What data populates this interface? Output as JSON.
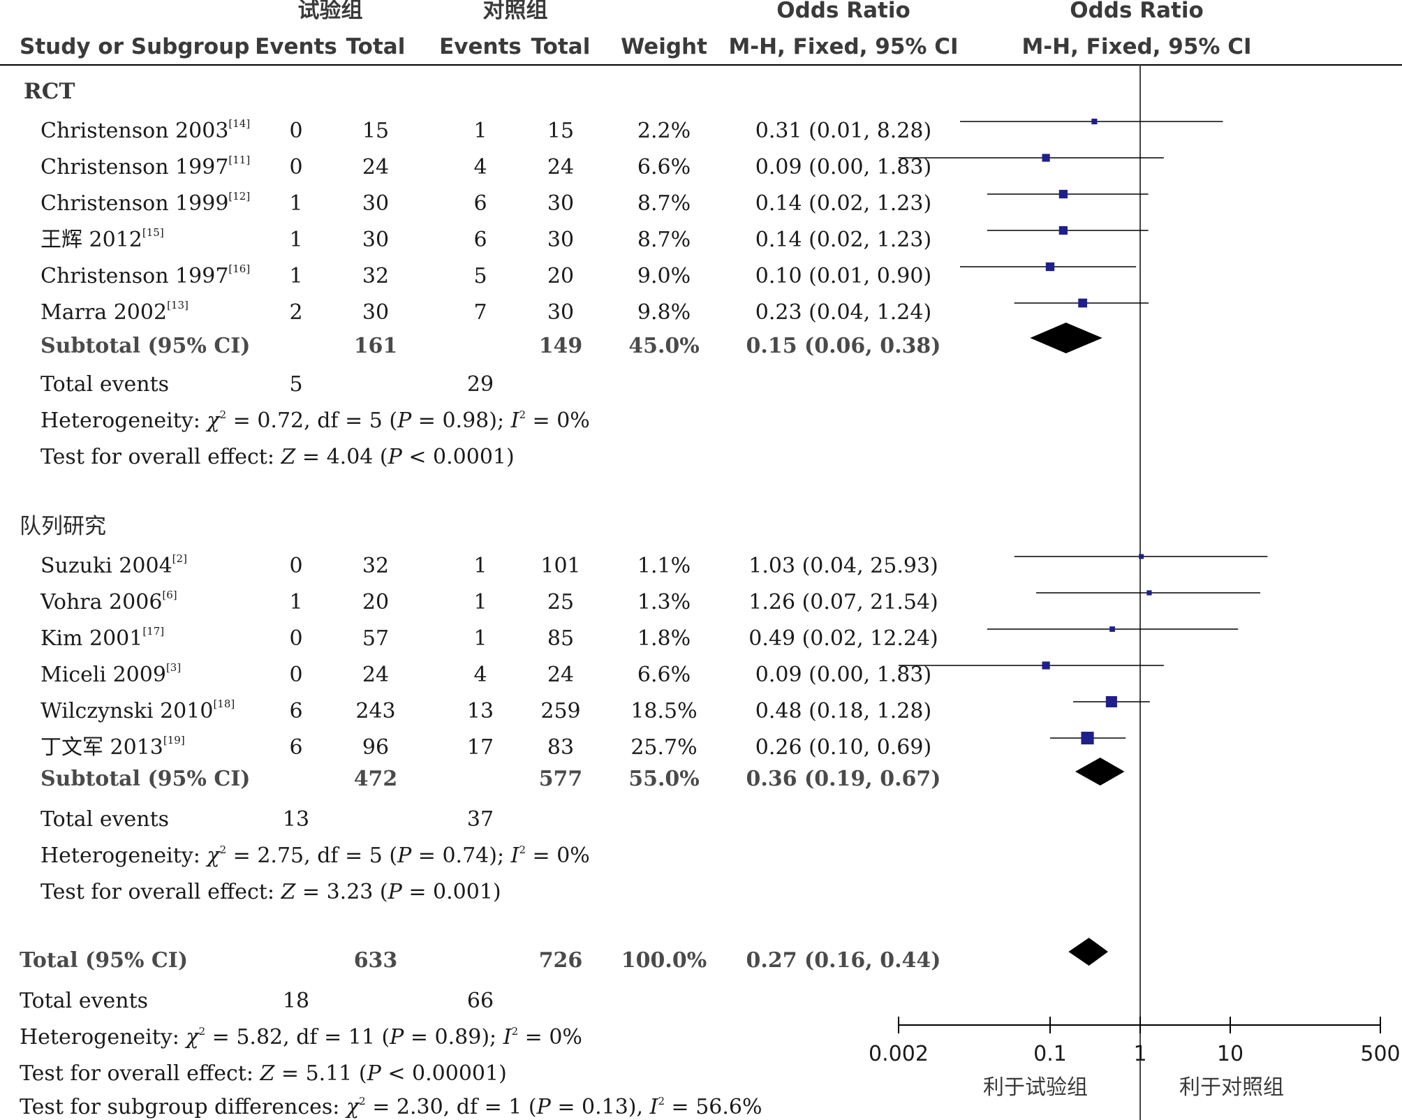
{
  "header": {
    "group_exp": "试验组",
    "group_ctrl": "对照组",
    "odds_ratio_a": "Odds Ratio",
    "odds_ratio_b": "Odds Ratio",
    "col_study": "Study or Subgroup",
    "col_events_exp": "Events",
    "col_total_exp": "Total",
    "col_events_ctrl": "Events",
    "col_total_ctrl": "Total",
    "col_weight": "Weight",
    "col_method_a": "M-H, Fixed, 95% CI",
    "col_method_b": "M-H, Fixed, 95% CI"
  },
  "subgroups": [
    {
      "title": "RCT",
      "studies": [
        {
          "name": "Christenson 2003",
          "ref": "[14]",
          "e1": "0",
          "t1": "15",
          "e2": "1",
          "t2": "15",
          "weight": "2.2%",
          "ci_text": "0.31 (0.01, 8.28)"
        },
        {
          "name": "Christenson 1997",
          "ref": "[11]",
          "e1": "0",
          "t1": "24",
          "e2": "4",
          "t2": "24",
          "weight": "6.6%",
          "ci_text": "0.09 (0.00, 1.83)"
        },
        {
          "name": "Christenson 1999",
          "ref": "[12]",
          "e1": "1",
          "t1": "30",
          "e2": "6",
          "t2": "30",
          "weight": "8.7%",
          "ci_text": "0.14 (0.02, 1.23)"
        },
        {
          "name": "王辉 2012",
          "ref": "[15]",
          "e1": "1",
          "t1": "30",
          "e2": "6",
          "t2": "30",
          "weight": "8.7%",
          "ci_text": "0.14 (0.02, 1.23)"
        },
        {
          "name": "Christenson 1997",
          "ref": "[16]",
          "e1": "1",
          "t1": "32",
          "e2": "5",
          "t2": "20",
          "weight": "9.0%",
          "ci_text": "0.10 (0.01, 0.90)"
        },
        {
          "name": "Marra 2002",
          "ref": "[13]",
          "e1": "2",
          "t1": "30",
          "e2": "7",
          "t2": "30",
          "weight": "9.8%",
          "ci_text": "0.23 (0.04, 1.24)"
        }
      ],
      "subtotal": {
        "label": "Subtotal (95% CI)",
        "t1": "161",
        "t2": "149",
        "weight": "45.0%",
        "ci_text": "0.15 (0.06, 0.38)"
      },
      "total_events": {
        "label": "Total events",
        "e1": "5",
        "e2": "29"
      },
      "heterogeneity": {
        "prefix": "Heterogeneity: ",
        "chi": "χ",
        "sq": "2",
        "text1": " = 0.72, df = 5 (",
        "p": "P",
        "text2": " = 0.98); ",
        "i": "I",
        "sq2": "2",
        "text3": " = 0%"
      },
      "overall": {
        "prefix": "Test for overall effect: ",
        "z": "Z",
        "text1": " = 4.04 (",
        "p": "P",
        "text2": " < 0.0001)"
      }
    },
    {
      "title": "队列研究",
      "studies": [
        {
          "name": "Suzuki 2004",
          "ref": "[2]",
          "e1": "0",
          "t1": "32",
          "e2": "1",
          "t2": "101",
          "weight": "1.1%",
          "ci_text": "1.03 (0.04, 25.93)"
        },
        {
          "name": "Vohra 2006",
          "ref": "[6]",
          "e1": "1",
          "t1": "20",
          "e2": "1",
          "t2": "25",
          "weight": "1.3%",
          "ci_text": "1.26 (0.07, 21.54)"
        },
        {
          "name": "Kim 2001",
          "ref": "[17]",
          "e1": "0",
          "t1": "57",
          "e2": "1",
          "t2": "85",
          "weight": "1.8%",
          "ci_text": "0.49 (0.02, 12.24)"
        },
        {
          "name": "Miceli 2009",
          "ref": "[3]",
          "e1": "0",
          "t1": "24",
          "e2": "4",
          "t2": "24",
          "weight": "6.6%",
          "ci_text": "0.09 (0.00, 1.83)"
        },
        {
          "name": "Wilczynski 2010",
          "ref": "[18]",
          "e1": "6",
          "t1": "243",
          "e2": "13",
          "t2": "259",
          "weight": "18.5%",
          "ci_text": "0.48 (0.18, 1.28)"
        },
        {
          "name": "丁文军 2013",
          "ref": "[19]",
          "e1": "6",
          "t1": "96",
          "e2": "17",
          "t2": "83",
          "weight": "25.7%",
          "ci_text": "0.26 (0.10, 0.69)"
        }
      ],
      "subtotal": {
        "label": "Subtotal (95% CI)",
        "t1": "472",
        "t2": "577",
        "weight": "55.0%",
        "ci_text": "0.36 (0.19, 0.67)"
      },
      "total_events": {
        "label": "Total events",
        "e1": "13",
        "e2": "37"
      },
      "heterogeneity": {
        "prefix": "Heterogeneity: ",
        "chi": "χ",
        "sq": "2",
        "text1": " = 2.75, df = 5 (",
        "p": "P",
        "text2": " = 0.74); ",
        "i": "I",
        "sq2": "2",
        "text3": " = 0%"
      },
      "overall": {
        "prefix": "Test for overall effect: ",
        "z": "Z",
        "text1": " = 3.23 (",
        "p": "P",
        "text2": " = 0.001)"
      }
    }
  ],
  "total": {
    "label": "Total (95% CI)",
    "t1": "633",
    "t2": "726",
    "weight": "100.0%",
    "ci_text": "0.27 (0.16, 0.44)"
  },
  "total_events": {
    "label": "Total events",
    "e1": "18",
    "e2": "66"
  },
  "heterogeneity": {
    "prefix": "Heterogeneity: ",
    "chi": "χ",
    "sq": "2",
    "text1": " = 5.82, df = 11 (",
    "p": "P",
    "text2": " = 0.89); ",
    "i": "I",
    "sq2": "2",
    "text3": " = 0%"
  },
  "overall": {
    "prefix": "Test for overall effect: ",
    "z": "Z",
    "text1": " = 5.11 (",
    "p": "P",
    "text2": " < 0.00001)"
  },
  "subgroup_diff": {
    "prefix": "Test for subgroup differences: ",
    "chi": "χ",
    "sq": "2",
    "text1": " = 2.30, df = 1 (",
    "p": "P",
    "text2": " = 0.13), ",
    "i": "I",
    "sq2": "2",
    "text3": " = 56.6%"
  },
  "axis": {
    "ticks": [
      "0.002",
      "0.1",
      "1",
      "10",
      "500"
    ],
    "favours_left": "利于试验组",
    "favours_right": "利于对照组"
  },
  "colors": {
    "marker": "#1f1f8a",
    "diamond": "#000000",
    "line": "#000000"
  },
  "chart_data": {
    "type": "forest",
    "xscale": "log",
    "xlim": [
      0.002,
      500
    ],
    "xticks": [
      0.002,
      0.1,
      1,
      10,
      500
    ],
    "reference_line": 1,
    "studies": [
      {
        "name": "Christenson 2003",
        "or": 0.31,
        "lo": 0.01,
        "hi": 8.28,
        "weight": 2.2
      },
      {
        "name": "Christenson 1997",
        "or": 0.09,
        "lo": 0.0,
        "hi": 1.83,
        "weight": 6.6
      },
      {
        "name": "Christenson 1999",
        "or": 0.14,
        "lo": 0.02,
        "hi": 1.23,
        "weight": 8.7
      },
      {
        "name": "王辉 2012",
        "or": 0.14,
        "lo": 0.02,
        "hi": 1.23,
        "weight": 8.7
      },
      {
        "name": "Christenson 1997",
        "or": 0.1,
        "lo": 0.01,
        "hi": 0.9,
        "weight": 9.0
      },
      {
        "name": "Marra 2002",
        "or": 0.23,
        "lo": 0.04,
        "hi": 1.24,
        "weight": 9.8
      },
      {
        "name": "Suzuki 2004",
        "or": 1.03,
        "lo": 0.04,
        "hi": 25.93,
        "weight": 1.1
      },
      {
        "name": "Vohra 2006",
        "or": 1.26,
        "lo": 0.07,
        "hi": 21.54,
        "weight": 1.3
      },
      {
        "name": "Kim 2001",
        "or": 0.49,
        "lo": 0.02,
        "hi": 12.24,
        "weight": 1.8
      },
      {
        "name": "Miceli 2009",
        "or": 0.09,
        "lo": 0.0,
        "hi": 1.83,
        "weight": 6.6
      },
      {
        "name": "Wilczynski 2010",
        "or": 0.48,
        "lo": 0.18,
        "hi": 1.28,
        "weight": 18.5
      },
      {
        "name": "丁文军 2013",
        "or": 0.26,
        "lo": 0.1,
        "hi": 0.69,
        "weight": 25.7
      }
    ],
    "pooled": [
      {
        "name": "Subtotal (95% CI)",
        "or": 0.15,
        "lo": 0.06,
        "hi": 0.38
      },
      {
        "name": "Subtotal (95% CI)",
        "or": 0.36,
        "lo": 0.19,
        "hi": 0.67
      },
      {
        "name": "Total (95% CI)",
        "or": 0.27,
        "lo": 0.16,
        "hi": 0.44
      }
    ]
  }
}
